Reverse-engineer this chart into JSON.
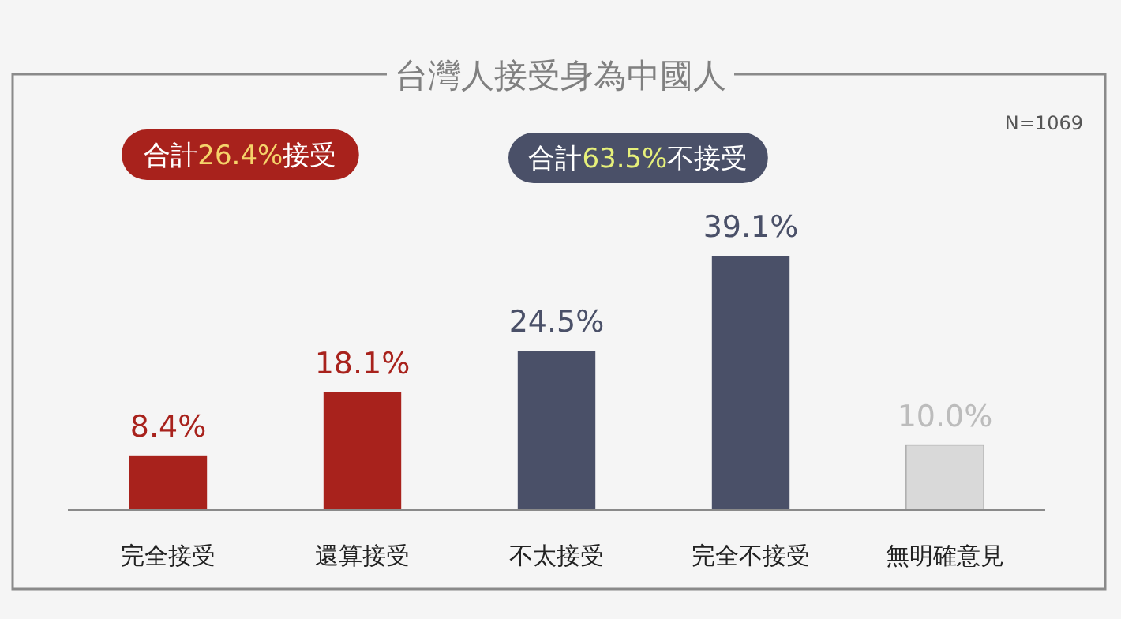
{
  "chart_data": {
    "type": "bar",
    "title": "台灣人接受身為中國人",
    "categories": [
      "完全接受",
      "還算接受",
      "不太接受",
      "完全不接受",
      "無明確意見"
    ],
    "values": [
      8.4,
      18.1,
      24.5,
      39.1,
      10.0
    ],
    "value_labels": [
      "8.4%",
      "18.1%",
      "24.5%",
      "39.1%",
      "10.0%"
    ],
    "colors": [
      "#a8221c",
      "#a8221c",
      "#4a5068",
      "#4a5068",
      "#d9d9d9"
    ],
    "annotations": [
      "合計26.4%接受",
      "合計63.5%不接受",
      "N=1069"
    ]
  }
}
